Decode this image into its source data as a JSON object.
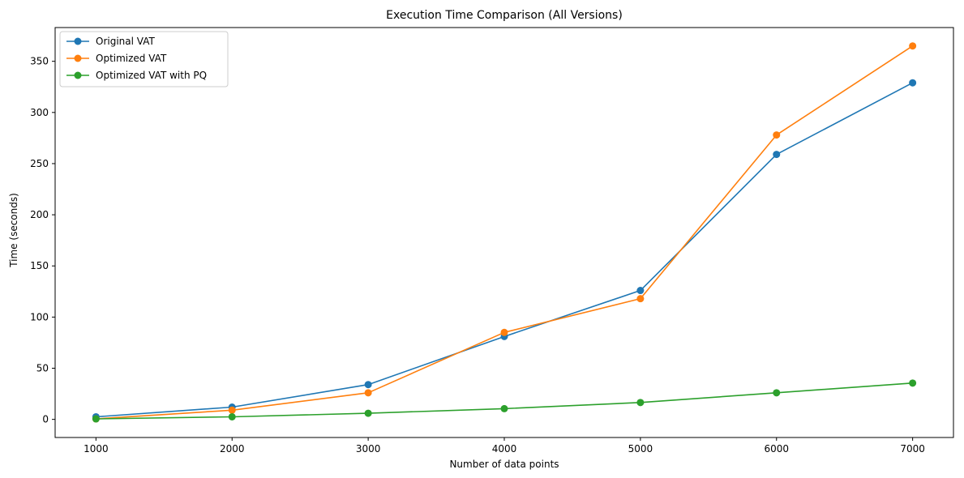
{
  "chart_data": {
    "type": "line",
    "title": "Execution Time Comparison (All Versions)",
    "xlabel": "Number of data points",
    "ylabel": "Time (seconds)",
    "x": [
      1000,
      2000,
      3000,
      4000,
      5000,
      6000,
      7000
    ],
    "x_ticks": [
      1000,
      2000,
      3000,
      4000,
      5000,
      6000,
      7000
    ],
    "y_ticks": [
      0,
      50,
      100,
      150,
      200,
      250,
      300,
      350
    ],
    "xlim": [
      700,
      7300
    ],
    "ylim": [
      -17.7,
      383
    ],
    "grid": false,
    "legend_position": "top-left",
    "series": [
      {
        "name": "Original VAT",
        "color": "#1f77b4",
        "marker": "circle",
        "values": [
          2.5,
          12,
          34,
          81,
          126,
          259,
          329
        ]
      },
      {
        "name": "Optimized VAT",
        "color": "#ff7f0e",
        "marker": "circle",
        "values": [
          0.5,
          9,
          26,
          85,
          118,
          278,
          365
        ]
      },
      {
        "name": "Optimized VAT with PQ",
        "color": "#2ca02c",
        "marker": "circle",
        "values": [
          0.5,
          2.5,
          6,
          10.5,
          16.5,
          26,
          35.5
        ]
      }
    ]
  }
}
